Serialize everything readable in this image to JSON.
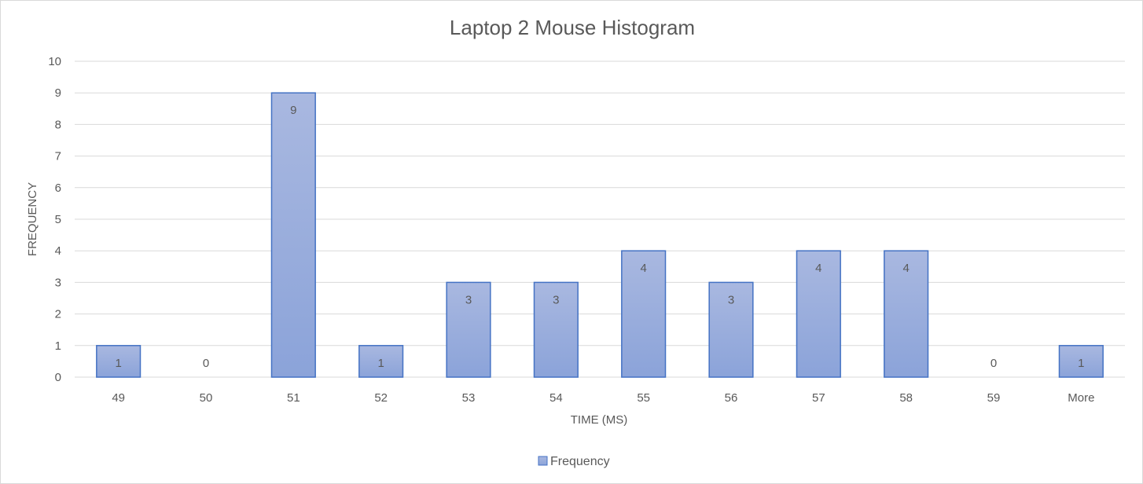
{
  "chart_data": {
    "type": "bar",
    "title": "Laptop 2 Mouse Histogram",
    "xlabel": "TIME (MS)",
    "ylabel": "FREQUENCY",
    "categories": [
      "49",
      "50",
      "51",
      "52",
      "53",
      "54",
      "55",
      "56",
      "57",
      "58",
      "59",
      "More"
    ],
    "series": [
      {
        "name": "Frequency",
        "values": [
          1,
          0,
          9,
          1,
          3,
          3,
          4,
          3,
          4,
          4,
          0,
          1
        ]
      }
    ],
    "ylim": [
      0,
      10
    ],
    "yticks": [
      "0",
      "1",
      "2",
      "3",
      "4",
      "5",
      "6",
      "7",
      "8",
      "9",
      "10"
    ],
    "grid": true,
    "legend_position": "bottom",
    "data_labels": true,
    "colors": {
      "bar_fill_top": "#a9b8e0",
      "bar_fill_bottom": "#8ba3d9",
      "bar_stroke": "#4472c4",
      "gridline": "#d9d9d9",
      "text": "#595959"
    }
  }
}
